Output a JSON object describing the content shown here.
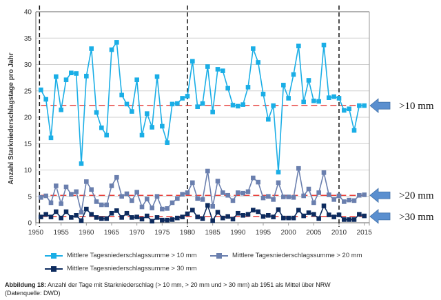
{
  "chart_data": {
    "type": "line",
    "ylabel": "Anzahl Starkniederschlagstage pro Jahr",
    "xlabel": "",
    "ylim": [
      0,
      40
    ],
    "xlim": [
      1950,
      2016
    ],
    "yticks": [
      0,
      5,
      10,
      15,
      20,
      25,
      30,
      35,
      40
    ],
    "xticks": [
      1950,
      1955,
      1960,
      1965,
      1970,
      1975,
      1980,
      1985,
      1990,
      1995,
      2000,
      2005,
      2010,
      2015
    ],
    "grid": "horizontal",
    "legend_position": "bottom",
    "x": [
      1951,
      1952,
      1953,
      1954,
      1955,
      1956,
      1957,
      1958,
      1959,
      1960,
      1961,
      1962,
      1963,
      1964,
      1965,
      1966,
      1967,
      1968,
      1969,
      1970,
      1971,
      1972,
      1973,
      1974,
      1975,
      1976,
      1977,
      1978,
      1979,
      1980,
      1981,
      1982,
      1983,
      1984,
      1985,
      1986,
      1987,
      1988,
      1989,
      1990,
      1991,
      1992,
      1993,
      1994,
      1995,
      1996,
      1997,
      1998,
      1999,
      2000,
      2001,
      2002,
      2003,
      2004,
      2005,
      2006,
      2007,
      2008,
      2009,
      2010,
      2011,
      2012,
      2013,
      2014,
      2015
    ],
    "series": [
      {
        "name": "Mittlere Tagesniederschlagssumme > 10 mm",
        "color": "#1aaee6",
        "values": [
          25.2,
          23.4,
          16.1,
          27.7,
          21.4,
          27.1,
          28.4,
          28.3,
          11.2,
          27.8,
          33.0,
          20.9,
          18.0,
          16.6,
          32.8,
          34.2,
          24.2,
          22.5,
          21.1,
          27.1,
          16.6,
          20.7,
          18.1,
          27.7,
          18.3,
          15.2,
          22.5,
          22.6,
          23.6,
          24.0,
          30.6,
          22.0,
          22.6,
          29.6,
          21.0,
          29.1,
          28.8,
          25.5,
          22.3,
          22.1,
          22.4,
          25.7,
          33.0,
          30.4,
          24.4,
          19.6,
          22.2,
          9.6,
          26.1,
          23.6,
          28.1,
          33.5,
          22.9,
          27.0,
          23.1,
          23.0,
          33.7,
          23.7,
          23.9,
          23.6,
          21.3,
          21.6,
          17.5,
          22.2,
          22.2
        ],
        "mean": 22.2
      },
      {
        "name": "Mittlere Tagesniederschlagssumme > 20 mm",
        "color": "#6a7fae",
        "values": [
          4.8,
          5.1,
          3.8,
          7.0,
          3.6,
          6.8,
          5.4,
          5.9,
          2.0,
          7.8,
          6.3,
          4.0,
          3.4,
          3.4,
          7.0,
          8.6,
          5.0,
          5.5,
          4.2,
          5.8,
          3.0,
          4.5,
          2.8,
          5.0,
          2.6,
          2.7,
          3.8,
          4.6,
          5.4,
          5.7,
          7.6,
          4.6,
          4.4,
          9.8,
          3.1,
          7.9,
          5.7,
          5.2,
          4.2,
          5.7,
          5.6,
          5.9,
          8.5,
          7.7,
          4.7,
          5.0,
          4.4,
          7.6,
          4.9,
          4.9,
          4.8,
          10.3,
          5.1,
          6.4,
          3.8,
          5.7,
          9.5,
          5.3,
          4.4,
          5.1,
          4.0,
          4.3,
          4.2,
          5.2,
          5.3
        ],
        "mean": 5.2
      },
      {
        "name": "Mittlere Tagesniederschlagssumme > 30 mm",
        "color": "#0d2b5e",
        "values": [
          1.1,
          1.6,
          1.1,
          2.1,
          0.9,
          2.1,
          1.0,
          1.4,
          0.4,
          2.6,
          1.6,
          1.0,
          0.8,
          0.8,
          1.8,
          2.3,
          1.0,
          1.8,
          1.0,
          1.1,
          0.7,
          1.3,
          0.3,
          1.0,
          0.5,
          0.5,
          0.6,
          0.9,
          1.1,
          1.7,
          2.4,
          1.1,
          0.8,
          3.3,
          0.4,
          2.0,
          0.9,
          1.2,
          0.7,
          1.8,
          1.4,
          1.6,
          2.4,
          2.1,
          1.2,
          1.4,
          1.1,
          2.5,
          0.9,
          0.9,
          0.9,
          2.4,
          1.3,
          1.9,
          1.6,
          0.8,
          3.2,
          1.5,
          1.1,
          1.5,
          0.6,
          0.6,
          0.6,
          1.6,
          1.3
        ],
        "mean": 1.2
      }
    ],
    "vertical_markers": [
      1951,
      1980,
      2010
    ],
    "annotations": [
      ">10 mm",
      ">20 mm",
      ">30 mm"
    ]
  },
  "caption": {
    "label": "Abbildung 18:",
    "text": " Anzahl der Tage mit Starkniederschlag (> 10 mm, > 20 mm und > 30 mm) ab 1951 als Mittel über NRW",
    "source": "(Datenquelle: DWD)"
  },
  "colors": {
    "mean_line": "#e8413c",
    "arrow": "#5a8fcf",
    "grid": "#cfcfcf"
  }
}
